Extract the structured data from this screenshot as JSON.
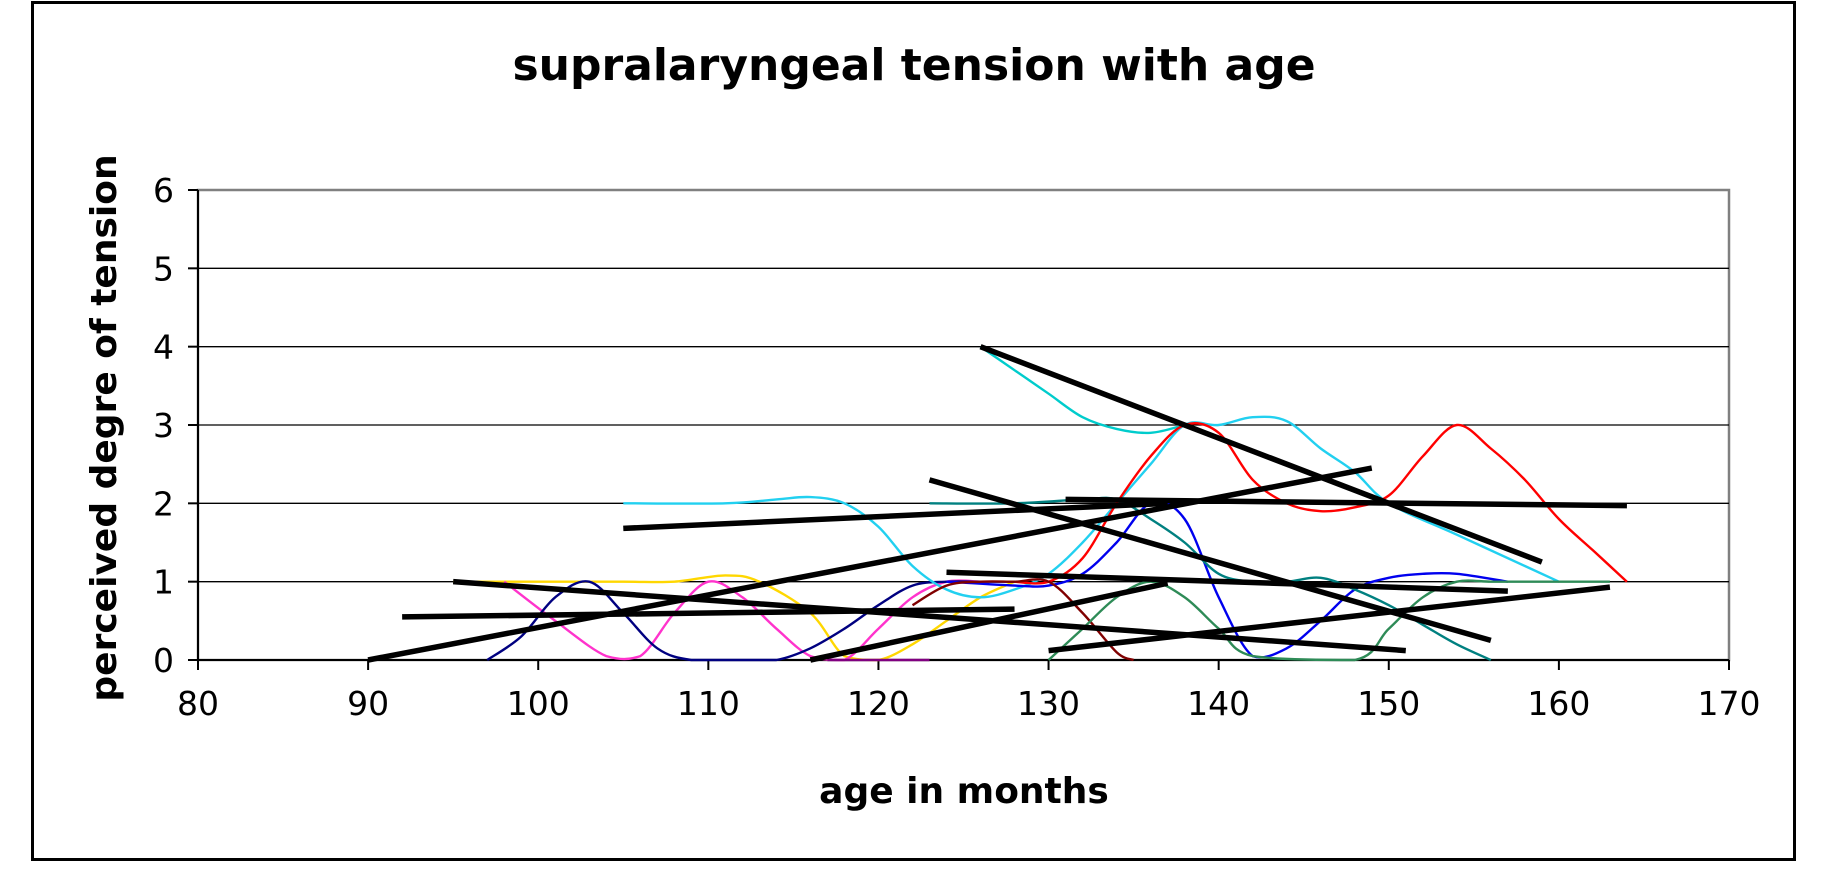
{
  "chart_data": {
    "type": "line",
    "title": "supralaryngeal tension with age",
    "xlabel": "age in months",
    "ylabel": "perceived degre of tension",
    "xlim": [
      80,
      170
    ],
    "ylim": [
      0,
      6
    ],
    "xticks": [
      "80",
      "90",
      "100",
      "110",
      "120",
      "130",
      "140",
      "150",
      "160",
      "170"
    ],
    "yticks": [
      "0",
      "1",
      "2",
      "3",
      "4",
      "5",
      "6"
    ],
    "grid": "horizontal",
    "legend": "none",
    "series": [
      {
        "color": "#ffd700",
        "points": [
          [
            95,
            1
          ],
          [
            100,
            1
          ],
          [
            105,
            1
          ],
          [
            108,
            1
          ],
          [
            111,
            1.08
          ],
          [
            113,
            1
          ],
          [
            116,
            0.6
          ],
          [
            118,
            0.05
          ],
          [
            120,
            0
          ],
          [
            122,
            0.2
          ],
          [
            124,
            0.5
          ],
          [
            126,
            0.8
          ],
          [
            128,
            1
          ]
        ]
      },
      {
        "color": "#ff33cc",
        "points": [
          [
            98,
            1
          ],
          [
            101,
            0.5
          ],
          [
            104,
            0.05
          ],
          [
            106,
            0.05
          ],
          [
            108,
            0.6
          ],
          [
            110,
            1
          ],
          [
            112,
            0.8
          ],
          [
            114,
            0.4
          ],
          [
            116,
            0.05
          ],
          [
            118,
            0
          ],
          [
            120,
            0.4
          ],
          [
            122,
            0.8
          ],
          [
            124,
            1
          ],
          [
            126,
            1
          ]
        ]
      },
      {
        "color": "#000080",
        "points": [
          [
            97,
            0
          ],
          [
            99,
            0.3
          ],
          [
            101,
            0.8
          ],
          [
            103,
            1
          ],
          [
            105,
            0.6
          ],
          [
            107,
            0.15
          ],
          [
            109,
            0
          ],
          [
            112,
            0
          ],
          [
            114,
            0
          ],
          [
            116,
            0.15
          ],
          [
            118,
            0.4
          ],
          [
            120,
            0.7
          ],
          [
            122,
            0.95
          ],
          [
            124,
            1
          ],
          [
            126,
            1
          ],
          [
            128,
            1
          ]
        ]
      },
      {
        "color": "#22d0f0",
        "points": [
          [
            105,
            2
          ],
          [
            111,
            2
          ],
          [
            114,
            2.05
          ],
          [
            116,
            2.08
          ],
          [
            118,
            2
          ],
          [
            120,
            1.7
          ],
          [
            122,
            1.2
          ],
          [
            124,
            0.9
          ],
          [
            126,
            0.8
          ],
          [
            128,
            0.9
          ],
          [
            130,
            1.1
          ],
          [
            132,
            1.5
          ],
          [
            134,
            2
          ],
          [
            136,
            2.5
          ],
          [
            138,
            3
          ],
          [
            140,
            3
          ],
          [
            142,
            3.1
          ],
          [
            144,
            3.05
          ],
          [
            146,
            2.7
          ],
          [
            148,
            2.4
          ],
          [
            150,
            2
          ],
          [
            154,
            1.6
          ],
          [
            158,
            1.2
          ],
          [
            160,
            1
          ]
        ]
      },
      {
        "color": "#00cccc",
        "points": [
          [
            126,
            4
          ],
          [
            128,
            3.7
          ],
          [
            130,
            3.4
          ],
          [
            132,
            3.1
          ],
          [
            134,
            2.95
          ],
          [
            136,
            2.9
          ],
          [
            138,
            3
          ]
        ]
      },
      {
        "color": "#ff0000",
        "points": [
          [
            128,
            1
          ],
          [
            130,
            1
          ],
          [
            132,
            1.3
          ],
          [
            134,
            2
          ],
          [
            136,
            2.6
          ],
          [
            138,
            3
          ],
          [
            140,
            2.9
          ],
          [
            142,
            2.3
          ],
          [
            144,
            2
          ],
          [
            146,
            1.9
          ],
          [
            148,
            1.95
          ],
          [
            150,
            2.1
          ],
          [
            152,
            2.6
          ],
          [
            154,
            3
          ],
          [
            156,
            2.7
          ],
          [
            158,
            2.3
          ],
          [
            160,
            1.8
          ],
          [
            162,
            1.4
          ],
          [
            164,
            1
          ]
        ]
      },
      {
        "color": "#0000ee",
        "points": [
          [
            124,
            1
          ],
          [
            128,
            0.95
          ],
          [
            130,
            0.95
          ],
          [
            132,
            1.1
          ],
          [
            134,
            1.5
          ],
          [
            136,
            2
          ],
          [
            138,
            1.8
          ],
          [
            140,
            0.8
          ],
          [
            142,
            0.05
          ],
          [
            144,
            0.15
          ],
          [
            146,
            0.5
          ],
          [
            148,
            0.9
          ],
          [
            150,
            1.05
          ],
          [
            152,
            1.1
          ],
          [
            154,
            1.1
          ],
          [
            157,
            1
          ]
        ]
      },
      {
        "color": "#800000",
        "points": [
          [
            122,
            0.7
          ],
          [
            124,
            0.95
          ],
          [
            126,
            1
          ],
          [
            128,
            1
          ],
          [
            130,
            1
          ],
          [
            132,
            0.6
          ],
          [
            134,
            0.1
          ],
          [
            135,
            0
          ]
        ]
      },
      {
        "color": "#2e8b57",
        "points": [
          [
            130,
            0
          ],
          [
            132,
            0.4
          ],
          [
            134,
            0.8
          ],
          [
            136,
            1
          ],
          [
            138,
            0.8
          ],
          [
            140,
            0.4
          ],
          [
            142,
            0.05
          ],
          [
            148,
            0
          ],
          [
            150,
            0.4
          ],
          [
            152,
            0.8
          ],
          [
            154,
            1
          ],
          [
            156,
            1
          ],
          [
            158,
            1
          ],
          [
            163,
            1
          ]
        ]
      },
      {
        "color": "#008080",
        "points": [
          [
            123,
            2
          ],
          [
            128,
            2
          ],
          [
            132,
            2.05
          ],
          [
            134,
            2.05
          ],
          [
            136,
            1.8
          ],
          [
            138,
            1.5
          ],
          [
            140,
            1.1
          ],
          [
            142,
            1
          ],
          [
            144,
            1
          ],
          [
            146,
            1.05
          ],
          [
            148,
            0.9
          ],
          [
            150,
            0.7
          ],
          [
            152,
            0.45
          ],
          [
            154,
            0.2
          ],
          [
            156,
            0
          ]
        ]
      },
      {
        "color": "#800080",
        "points": [
          [
            117,
            0
          ],
          [
            123,
            0
          ]
        ]
      }
    ],
    "trend_lines": [
      {
        "color": "#000000",
        "points": [
          [
            90,
            0
          ],
          [
            149,
            2.45
          ]
        ]
      },
      {
        "color": "#000000",
        "points": [
          [
            126,
            4
          ],
          [
            159,
            1.25
          ]
        ]
      },
      {
        "color": "#000000",
        "points": [
          [
            123,
            2.3
          ],
          [
            156,
            0.25
          ]
        ]
      },
      {
        "color": "#000000",
        "points": [
          [
            105,
            1.68
          ],
          [
            137,
            2
          ]
        ]
      },
      {
        "color": "#000000",
        "points": [
          [
            131,
            2.05
          ],
          [
            164,
            1.97
          ]
        ]
      },
      {
        "color": "#000000",
        "points": [
          [
            95,
            1
          ],
          [
            151,
            0.12
          ]
        ]
      },
      {
        "color": "#000000",
        "points": [
          [
            92,
            0.55
          ],
          [
            128,
            0.65
          ]
        ]
      },
      {
        "color": "#000000",
        "points": [
          [
            124,
            1.12
          ],
          [
            157,
            0.88
          ]
        ]
      },
      {
        "color": "#000000",
        "points": [
          [
            130,
            0.12
          ],
          [
            163,
            0.93
          ]
        ]
      },
      {
        "color": "#000000",
        "points": [
          [
            116,
            0
          ],
          [
            137,
            0.98
          ]
        ]
      }
    ]
  }
}
